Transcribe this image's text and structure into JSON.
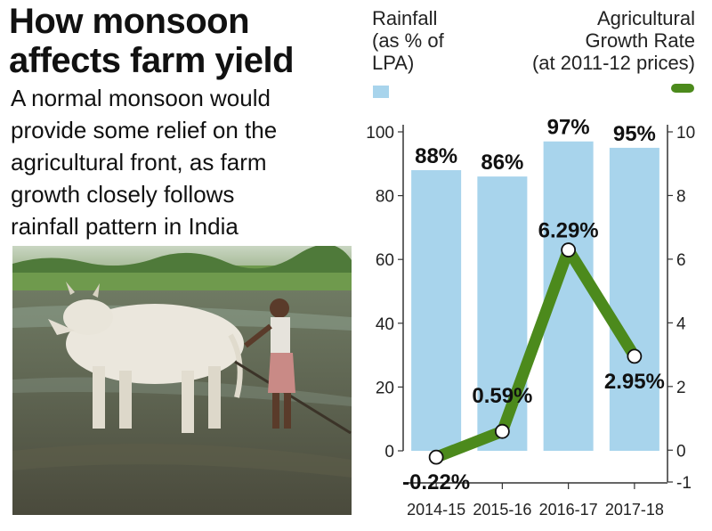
{
  "header": {
    "title": "How monsoon\naffects farm yield",
    "subtitle": "A normal monsoon would\nprovide some relief on the\nagricultural front, as farm\ngrowth closely follows\nrainfall pattern in India"
  },
  "legend": {
    "rainfall": "Rainfall\n(as % of\nLPA)",
    "agri": "Agricultural\nGrowth Rate\n(at 2011-12 prices)"
  },
  "colors": {
    "bar": "#a8d4ec",
    "line": "#4c8a1c",
    "grid": "#bbbbbb"
  },
  "photo": {
    "icon": "farmer-ploughing-with-ox-photo"
  },
  "chart_data": {
    "type": "bar+line",
    "categories": [
      "2014-15",
      "2015-16",
      "2016-17",
      "2017-18"
    ],
    "series": [
      {
        "name": "Rainfall (as % of LPA)",
        "type": "bar",
        "axis": "left",
        "values": [
          88,
          86,
          97,
          95
        ],
        "labels": [
          "88%",
          "86%",
          "97%",
          "95%"
        ]
      },
      {
        "name": "Agricultural Growth Rate (at 2011-12 prices)",
        "type": "line",
        "axis": "right",
        "values": [
          -0.22,
          0.59,
          6.29,
          2.95
        ],
        "labels": [
          "-0.22%",
          "0.59%",
          "6.29%",
          "2.95%"
        ]
      }
    ],
    "left_axis": {
      "ylim": [
        0,
        100
      ],
      "ticks": [
        0,
        20,
        40,
        60,
        80,
        100
      ]
    },
    "right_axis": {
      "ylim": [
        -1,
        10
      ],
      "ticks": [
        -1,
        0,
        2,
        4,
        6,
        8,
        10
      ]
    },
    "grid": false
  }
}
